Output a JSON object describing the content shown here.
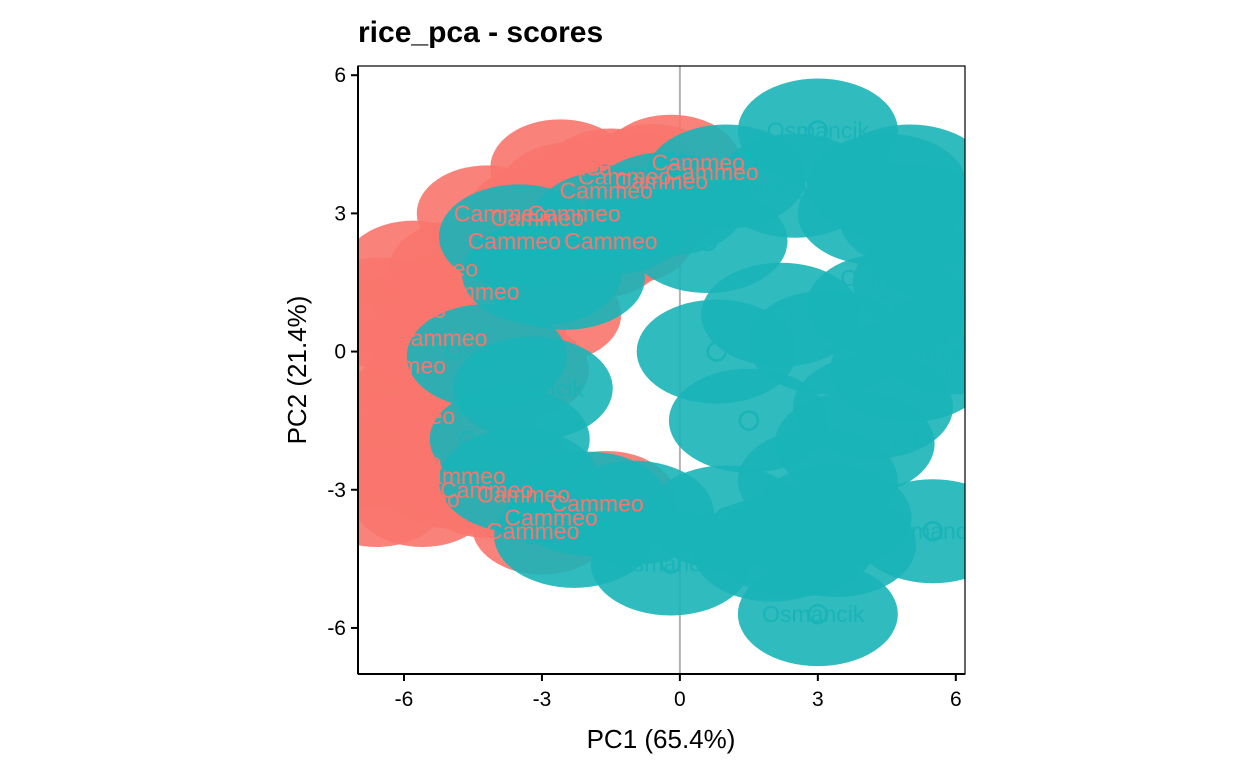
{
  "chart_data": {
    "type": "scatter",
    "title": "rice_pca - scores",
    "xlabel": "PC1 (65.4%)",
    "ylabel": "PC2 (21.4%)",
    "xlim": [
      -7,
      6.2
    ],
    "ylim": [
      -7,
      6.2
    ],
    "xticks": [
      -6,
      -3,
      0,
      3,
      6
    ],
    "yticks": [
      -6,
      -3,
      0,
      3,
      6
    ],
    "tick_labels": [
      "-6",
      "-3",
      "0",
      "3",
      "6"
    ],
    "reference_line_x": 0,
    "legend": "none",
    "grid": false,
    "series": [
      {
        "name": "Cammeo",
        "color": "#F8766D",
        "points": [
          [
            -2.6,
            4.0
          ],
          [
            -0.2,
            4.1
          ],
          [
            -0.6,
            3.9
          ],
          [
            -1.5,
            3.8
          ],
          [
            -2.4,
            3.5
          ],
          [
            -1.9,
            3.6
          ],
          [
            -0.9,
            3.7
          ],
          [
            -3.1,
            3.0
          ],
          [
            -4.2,
            3.0
          ],
          [
            -2.0,
            3.1
          ],
          [
            -3.6,
            2.6
          ],
          [
            -4.8,
            1.8
          ],
          [
            -5.8,
            1.8
          ],
          [
            -4.5,
            1.4
          ],
          [
            -6.5,
            1.0
          ],
          [
            -6.2,
            0.6
          ],
          [
            -5.2,
            0.2
          ],
          [
            -6.4,
            -0.3
          ],
          [
            -5.5,
            -0.8
          ],
          [
            -6.3,
            -1.4
          ],
          [
            -6.1,
            -2.0
          ],
          [
            -6.8,
            -2.4
          ],
          [
            -5.0,
            -2.8
          ],
          [
            -4.2,
            -3.0
          ],
          [
            -3.3,
            -3.0
          ],
          [
            -5.6,
            -3.2
          ],
          [
            -6.6,
            -3.2
          ],
          [
            -2.6,
            -3.5
          ],
          [
            -3.0,
            -3.8
          ],
          [
            -1.6,
            -3.2
          ],
          [
            -2.2,
            -3.3
          ],
          [
            -3.8,
            -2.6
          ],
          [
            -4.6,
            -1.2
          ],
          [
            -3.5,
            -0.4
          ],
          [
            -2.8,
            0.8
          ],
          [
            -1.8,
            2.2
          ],
          [
            -3.3,
            2.0
          ],
          [
            -0.8,
            3.0
          ],
          [
            -1.2,
            2.5
          ],
          [
            -4.0,
            0.4
          ]
        ]
      },
      {
        "name": "Osmancik",
        "color": "#19B4B8",
        "points": [
          [
            3.0,
            4.8
          ],
          [
            5.0,
            3.8
          ],
          [
            4.5,
            3.6
          ],
          [
            4.3,
            3.0
          ],
          [
            5.2,
            2.9
          ],
          [
            2.5,
            3.6
          ],
          [
            1.0,
            3.8
          ],
          [
            -0.3,
            3.2
          ],
          [
            5.8,
            2.2
          ],
          [
            5.5,
            1.5
          ],
          [
            6.0,
            0.2
          ],
          [
            5.0,
            -0.4
          ],
          [
            4.2,
            -1.2
          ],
          [
            3.8,
            -2.0
          ],
          [
            3.0,
            -2.8
          ],
          [
            3.3,
            -3.6
          ],
          [
            5.5,
            -3.9
          ],
          [
            2.5,
            -4.2
          ],
          [
            3.4,
            -4.2
          ],
          [
            2.0,
            -4.3
          ],
          [
            -0.2,
            -4.6
          ],
          [
            3.0,
            -5.7
          ],
          [
            -2.3,
            -4.0
          ],
          [
            -3.2,
            -0.8
          ],
          [
            -3.7,
            -1.9
          ],
          [
            -4.2,
            -0.1
          ],
          [
            -3.0,
            1.7
          ],
          [
            -2.5,
            1.6
          ],
          [
            -3.5,
            2.5
          ],
          [
            -1.5,
            2.8
          ],
          [
            -3.5,
            -2.8
          ],
          [
            -2.0,
            -3.3
          ],
          [
            -1.0,
            -3.5
          ],
          [
            1.0,
            -3.6
          ],
          [
            0.6,
            2.4
          ],
          [
            2.2,
            0.8
          ],
          [
            1.5,
            -1.5
          ],
          [
            3.2,
            0.2
          ],
          [
            4.5,
            1.0
          ],
          [
            0.8,
            0.0
          ]
        ]
      }
    ],
    "point_labels": [
      {
        "text": "Osmancik",
        "series": "Osmancik",
        "x": 3.0,
        "y": 4.8
      },
      {
        "text": "Osmancik",
        "series": "Osmancik",
        "x": 5.6,
        "y": 3.8
      },
      {
        "text": "Osmancik",
        "series": "Osmancik",
        "x": 4.7,
        "y": 3.6
      },
      {
        "text": "Osmancik",
        "series": "Osmancik",
        "x": 5.5,
        "y": 3.0
      },
      {
        "text": "Osmancik",
        "series": "Osmancik",
        "x": 5.4,
        "y": 2.3
      },
      {
        "text": "Osmancik",
        "series": "Osmancik",
        "x": 5.8,
        "y": 0.0
      },
      {
        "text": "Osmancik",
        "series": "Osmancik",
        "x": 5.0,
        "y": -0.4
      },
      {
        "text": "Osmancik",
        "series": "Osmancik",
        "x": 4.2,
        "y": -1.9
      },
      {
        "text": "Osmancik",
        "series": "Osmancik",
        "x": 3.4,
        "y": -3.0
      },
      {
        "text": "Osmancik",
        "series": "Osmancik",
        "x": 5.5,
        "y": -3.9
      },
      {
        "text": "Osmancik",
        "series": "Osmancik",
        "x": 3.3,
        "y": -3.7
      },
      {
        "text": "Osmancik",
        "series": "Osmancik",
        "x": 3.4,
        "y": -4.2
      },
      {
        "text": "Osmancik",
        "series": "Osmancik",
        "x": 2.3,
        "y": -4.3
      },
      {
        "text": "Osmancik",
        "series": "Osmancik",
        "x": -2.3,
        "y": -4.0
      },
      {
        "text": "Osmancik",
        "series": "Osmancik",
        "x": -0.3,
        "y": -4.6
      },
      {
        "text": "Osmancik",
        "series": "Osmancik",
        "x": 2.9,
        "y": -5.7
      },
      {
        "text": "Osmancik",
        "series": "Osmancik",
        "x": -1.0,
        "y": -3.5
      },
      {
        "text": "Osmancik",
        "series": "Osmancik",
        "x": 0.5,
        "y": -3.6
      },
      {
        "text": "Osmancik",
        "series": "Osmancik",
        "x": -0.7,
        "y": 3.9
      },
      {
        "text": "Osmancik",
        "series": "Osmancik",
        "x": 1.2,
        "y": 3.6
      },
      {
        "text": "Osmancik",
        "series": "Osmancik",
        "x": 3.5,
        "y": 3.5
      },
      {
        "text": "Osmancik",
        "series": "Osmancik",
        "x": -2.5,
        "y": 1.6
      },
      {
        "text": "Osmancik",
        "series": "Osmancik",
        "x": -3.2,
        "y": -0.8
      },
      {
        "text": "Osmancik",
        "series": "Osmancik",
        "x": -3.7,
        "y": -1.9
      },
      {
        "text": "Osmancik",
        "series": "Osmancik",
        "x": -3.5,
        "y": -2.8
      },
      {
        "text": "Osmancik",
        "series": "Osmancik",
        "x": -4.0,
        "y": 0.0
      },
      {
        "text": "Osmancik",
        "series": "Osmancik",
        "x": -1.0,
        "y": 3.1
      },
      {
        "text": "Osmancik",
        "series": "Osmancik",
        "x": 4.6,
        "y": 1.6
      },
      {
        "text": "Cammeo",
        "series": "Cammeo",
        "x": -2.5,
        "y": 4.0
      },
      {
        "text": "Cammeo",
        "series": "Cammeo",
        "x": 0.4,
        "y": 4.1
      },
      {
        "text": "Cammeo",
        "series": "Cammeo",
        "x": 0.7,
        "y": 3.9
      },
      {
        "text": "Cammeo",
        "series": "Cammeo",
        "x": -0.4,
        "y": 3.7
      },
      {
        "text": "Cammeo",
        "series": "Cammeo",
        "x": -1.2,
        "y": 3.8
      },
      {
        "text": "Cammeo",
        "series": "Cammeo",
        "x": -1.6,
        "y": 3.5
      },
      {
        "text": "Cammeo",
        "series": "Cammeo",
        "x": -3.9,
        "y": 3.0
      },
      {
        "text": "Cammeo",
        "series": "Cammeo",
        "x": -3.1,
        "y": 2.9
      },
      {
        "text": "Cammeo",
        "series": "Cammeo",
        "x": -2.3,
        "y": 3.0
      },
      {
        "text": "Cammeo",
        "series": "Cammeo",
        "x": -3.6,
        "y": 2.4
      },
      {
        "text": "Cammeo",
        "series": "Cammeo",
        "x": -5.4,
        "y": 1.8
      },
      {
        "text": "Cammeo",
        "series": "Cammeo",
        "x": -6.1,
        "y": 0.9
      },
      {
        "text": "Cammeo",
        "series": "Cammeo",
        "x": -6.1,
        "y": -0.3
      },
      {
        "text": "Cammeo",
        "series": "Cammeo",
        "x": -5.9,
        "y": -1.4
      },
      {
        "text": "Cammeo",
        "series": "Cammeo",
        "x": -6.2,
        "y": -2.4
      },
      {
        "text": "Cammeo",
        "series": "Cammeo",
        "x": -5.8,
        "y": -3.2
      },
      {
        "text": "Cammeo",
        "series": "Cammeo",
        "x": -4.2,
        "y": -3.0
      },
      {
        "text": "Cammeo",
        "series": "Cammeo",
        "x": -3.4,
        "y": -3.1
      },
      {
        "text": "Cammeo",
        "series": "Cammeo",
        "x": -2.8,
        "y": -3.6
      },
      {
        "text": "Cammeo",
        "series": "Cammeo",
        "x": -3.2,
        "y": -3.9
      },
      {
        "text": "Cammeo",
        "series": "Cammeo",
        "x": -1.8,
        "y": -3.3
      },
      {
        "text": "Cammeo",
        "series": "Cammeo",
        "x": -4.8,
        "y": -2.7
      },
      {
        "text": "Cammeo",
        "series": "Cammeo",
        "x": -4.5,
        "y": 1.3
      },
      {
        "text": "Cammeo",
        "series": "Cammeo",
        "x": -5.2,
        "y": 0.3
      },
      {
        "text": "Cammeo",
        "series": "Cammeo",
        "x": -1.5,
        "y": 2.4
      }
    ]
  }
}
